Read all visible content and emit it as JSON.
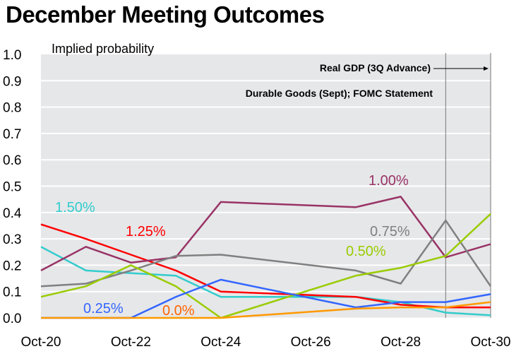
{
  "chart_data": {
    "type": "line",
    "title": "December Meeting Outcomes",
    "ylabel": "Implied probability",
    "xlabel": "",
    "ylim": [
      0,
      1.0
    ],
    "yticks": [
      "0.0",
      "0.1",
      "0.2",
      "0.3",
      "0.4",
      "0.5",
      "0.6",
      "0.7",
      "0.8",
      "0.9",
      "1.0"
    ],
    "xrange_days": [
      0,
      10
    ],
    "xtick_labels": [
      "Oct-20",
      "Oct-22",
      "Oct-24",
      "Oct-26",
      "Oct-28",
      "Oct-30"
    ],
    "xtick_days": [
      0,
      2,
      4,
      6,
      8,
      10
    ],
    "x_labels": [
      "Oct-20",
      "Oct-21",
      "Oct-22",
      "Oct-23",
      "Oct-24",
      "Oct-27",
      "Oct-28",
      "Oct-29",
      "Oct-30"
    ],
    "x_days": [
      0,
      1,
      2,
      3,
      4,
      7,
      8,
      9,
      10
    ],
    "grid": true,
    "series": [
      {
        "name": "1.50%",
        "color": "#33CCCC",
        "label_color": "#33CCCC",
        "values": [
          0.27,
          0.18,
          0.17,
          0.16,
          0.08,
          0.08,
          0.06,
          0.02,
          0.01
        ]
      },
      {
        "name": "1.25%",
        "color": "#FF0000",
        "label_color": "#FF0000",
        "values": [
          0.355,
          0.3,
          0.24,
          0.18,
          0.1,
          0.08,
          0.05,
          0.04,
          0.04
        ]
      },
      {
        "name": "1.00%",
        "color": "#993366",
        "label_color": "#993366",
        "values": [
          0.18,
          0.27,
          0.21,
          0.23,
          0.44,
          0.42,
          0.46,
          0.23,
          0.28
        ]
      },
      {
        "name": "0.75%",
        "color": "#808080",
        "label_color": "#808080",
        "values": [
          0.12,
          0.13,
          0.18,
          0.235,
          0.24,
          0.18,
          0.13,
          0.37,
          0.12
        ]
      },
      {
        "name": "0.50%",
        "color": "#99CC00",
        "label_color": "#99CC00",
        "values": [
          0.08,
          0.12,
          0.2,
          0.12,
          0.0,
          0.16,
          0.19,
          0.235,
          0.395
        ]
      },
      {
        "name": "0.25%",
        "color": "#3366FF",
        "label_color": "#3366FF",
        "values": [
          0.0,
          0.0,
          0.0,
          0.08,
          0.145,
          0.04,
          0.06,
          0.06,
          0.09
        ]
      },
      {
        "name": "0.0%",
        "color": "#FF9900",
        "label_color": "#FF6600",
        "values": [
          0.0,
          0.0,
          0.0,
          0.0,
          0.0,
          0.035,
          0.04,
          0.04,
          0.06
        ]
      }
    ],
    "annotations": [
      {
        "text": "Real GDP (3Q Advance)",
        "arrow": "right",
        "event_day": 10
      },
      {
        "text": "Durable Goods (Sept); FOMC Statement",
        "event_day": 9
      }
    ],
    "legend": "inline-labels"
  }
}
